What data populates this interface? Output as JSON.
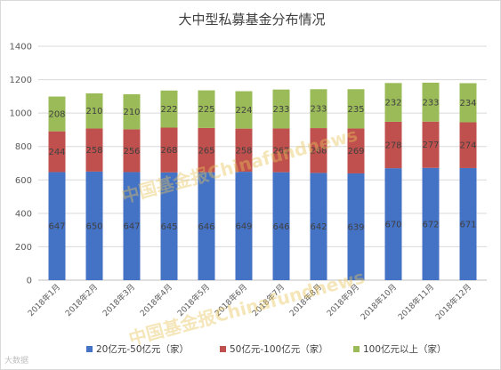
{
  "chart_data": {
    "type": "bar",
    "stacked": true,
    "title": "大中型私募基金分布情况",
    "categories": [
      "2018年1月",
      "2018年2月",
      "2018年3月",
      "2018年4月",
      "2018年5月",
      "2018年6月",
      "2018年7月",
      "2018年8月",
      "2018年9月",
      "2018年10月",
      "2018年11月",
      "2018年12月"
    ],
    "series": [
      {
        "name": "20亿元-50亿元（家）",
        "color": "#4472c4",
        "values": [
          647,
          650,
          647,
          645,
          646,
          649,
          646,
          642,
          639,
          670,
          672,
          671
        ]
      },
      {
        "name": "50亿元-100亿元（家）",
        "color": "#c0504d",
        "values": [
          244,
          258,
          256,
          268,
          265,
          258,
          262,
          268,
          269,
          278,
          277,
          274
        ]
      },
      {
        "name": "100亿元以上（家）",
        "color": "#9bbb59",
        "values": [
          208,
          210,
          210,
          222,
          225,
          224,
          233,
          233,
          235,
          232,
          233,
          234
        ]
      }
    ],
    "ylim": [
      0,
      1400
    ],
    "yticks": [
      0,
      200,
      400,
      600,
      800,
      1000,
      1200,
      1400
    ],
    "grid": true,
    "legend_position": "bottom",
    "xlabel": "",
    "ylabel": ""
  },
  "watermarks": [
    "中国基金报Chinafundnews",
    "中国基金报Chinafundnews"
  ],
  "logo_text": "大数据"
}
